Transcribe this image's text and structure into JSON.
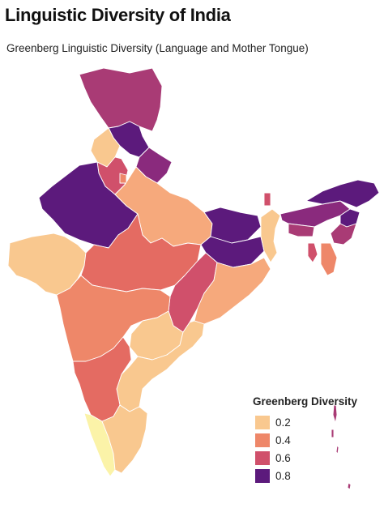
{
  "title": "Linguistic Diversity of India",
  "subtitle": "Greenberg Linguistic Diversity (Language and Mother Tongue)",
  "legend": {
    "title": "Greenberg Diversity",
    "items": [
      {
        "label": "0.2",
        "color": "#f9c88f"
      },
      {
        "label": "0.4",
        "color": "#ee8769"
      },
      {
        "label": "0.6",
        "color": "#d0506b"
      },
      {
        "label": "0.8",
        "color": "#5c1a7c"
      }
    ]
  },
  "colors": {
    "c_kerala": "#fbf3a8",
    "c_02": "#f9c88f",
    "c_03": "#f6a97c",
    "c_04": "#ee8769",
    "c_05": "#e46b62",
    "c_06": "#d0506b",
    "c_07": "#a93b75",
    "c_08": "#8a2a7d",
    "c_09": "#5c1a7c"
  }
}
